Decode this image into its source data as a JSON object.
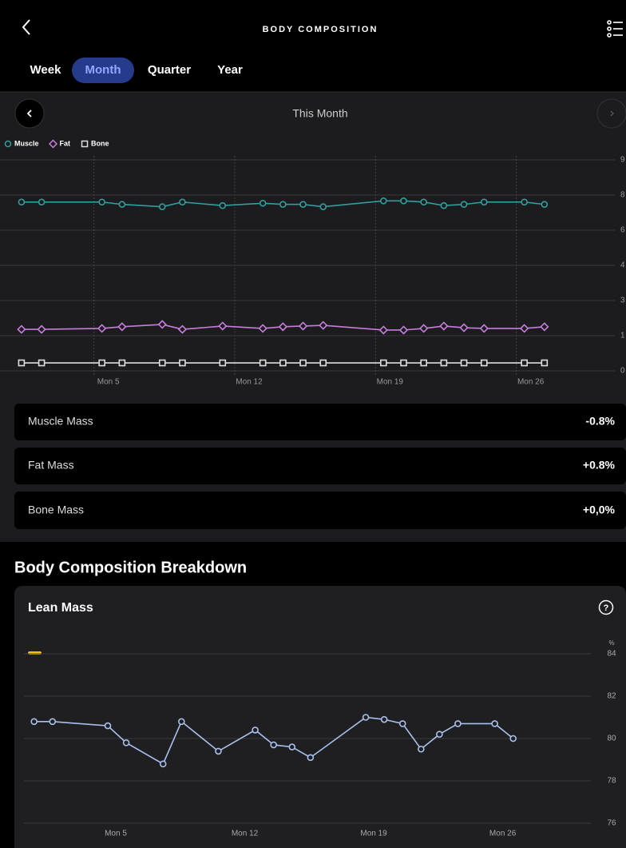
{
  "header": {
    "title": "BODY COMPOSITION"
  },
  "tabs": [
    "Week",
    "Month",
    "Quarter",
    "Year"
  ],
  "period": "This Month",
  "chart_data": [
    {
      "type": "line",
      "x": [
        1,
        2,
        5,
        6,
        8,
        9,
        11,
        13,
        14,
        15,
        16,
        19,
        20,
        21,
        22,
        23,
        24,
        26,
        27
      ],
      "xlim": [
        0.25,
        30.5
      ],
      "xticks": [
        {
          "value": 5,
          "label": "Mon 5"
        },
        {
          "value": 12,
          "label": "Mon 12"
        },
        {
          "value": 19,
          "label": "Mon 19"
        },
        {
          "value": 26,
          "label": "Mon 26"
        }
      ],
      "ylim": [
        0,
        90
      ],
      "yticks": [
        0,
        {
          "value": 15,
          "label": "1"
        },
        {
          "value": 30,
          "label": "3"
        },
        {
          "value": 45,
          "label": "4"
        },
        {
          "value": 60,
          "label": "6"
        },
        {
          "value": 75,
          "label": "8"
        },
        {
          "value": 90,
          "label": "9"
        }
      ],
      "grid": true,
      "series": [
        {
          "name": "Muscle",
          "color": "#2f9e9e",
          "marker": "circle",
          "values": [
            72,
            72,
            72,
            71,
            70,
            72,
            70.5,
            71.5,
            71,
            71,
            70,
            72.5,
            72.5,
            72,
            70.5,
            71,
            72,
            72,
            71
          ]
        },
        {
          "name": "Fat",
          "color": "#c77ddc",
          "marker": "diamond",
          "values": [
            17.7,
            17.7,
            18.1,
            18.8,
            19.8,
            17.7,
            19.1,
            18.1,
            18.8,
            19.1,
            19.4,
            17.4,
            17.4,
            18.1,
            19.1,
            18.4,
            18.1,
            18.1,
            18.8
          ]
        },
        {
          "name": "Bone",
          "color": "#dddddd",
          "marker": "square",
          "values": [
            3.4,
            3.4,
            3.4,
            3.4,
            3.4,
            3.4,
            3.4,
            3.4,
            3.4,
            3.4,
            3.4,
            3.4,
            3.4,
            3.4,
            3.4,
            3.4,
            3.4,
            3.4,
            3.4
          ]
        }
      ]
    },
    {
      "type": "line",
      "title": "Lean Mass",
      "ylabel": "%",
      "color": "#a9c0ec",
      "x": [
        1,
        2,
        5,
        6,
        8,
        9,
        11,
        13,
        14,
        15,
        16,
        19,
        20,
        21,
        22,
        23,
        24,
        26,
        27
      ],
      "values": [
        80.8,
        80.8,
        80.6,
        79.8,
        78.8,
        80.8,
        79.4,
        80.4,
        79.7,
        79.6,
        79.1,
        81.0,
        80.9,
        80.7,
        79.5,
        80.2,
        80.7,
        80.7,
        80.0
      ],
      "xlim": [
        0.45,
        31
      ],
      "xticks": [
        {
          "value": 5,
          "label": "Mon 5"
        },
        {
          "value": 12,
          "label": "Mon 12"
        },
        {
          "value": 19,
          "label": "Mon 19"
        },
        {
          "value": 26,
          "label": "Mon 26"
        }
      ],
      "ylim": [
        76,
        84
      ],
      "yticks": [
        76,
        78,
        80,
        82,
        84
      ],
      "grid": true
    }
  ],
  "changes": [
    {
      "label": "Muscle Mass",
      "value": "-0.8%"
    },
    {
      "label": "Fat Mass",
      "value": "+0.8%"
    },
    {
      "label": "Bone Mass",
      "value": "+0,0%"
    }
  ],
  "breakdown": {
    "title": "Body Composition Breakdown"
  }
}
